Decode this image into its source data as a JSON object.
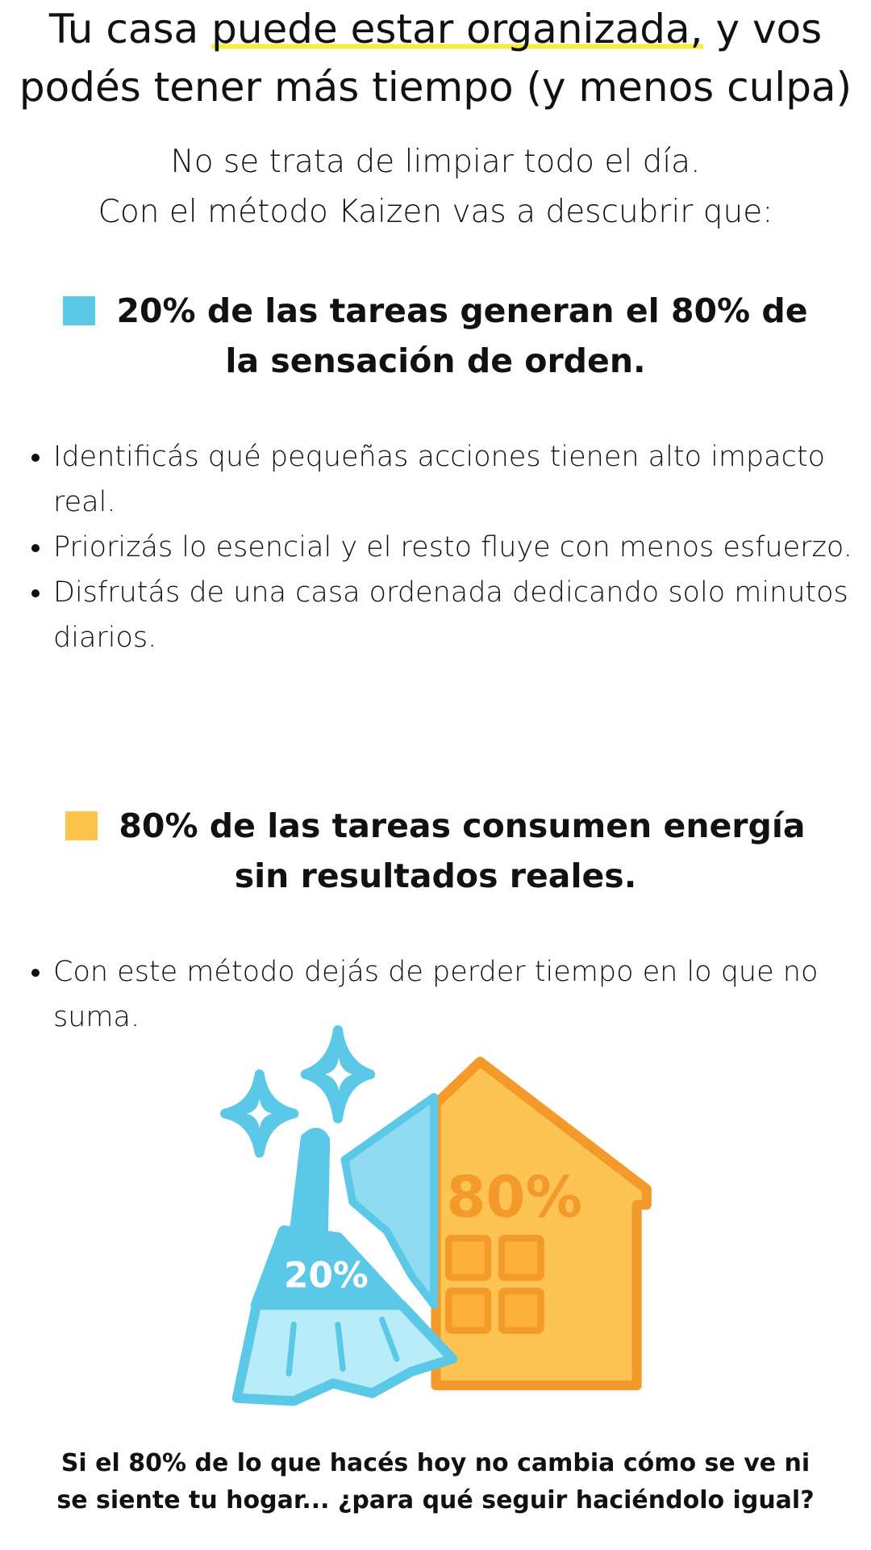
{
  "header": {
    "title_start": "Tu casa ",
    "title_highlight": "puede estar organizada,",
    "title_end": " y vos podés tener más tiempo (y menos culpa)",
    "intro": [
      "No se trata de limpiar todo el día.",
      "Con el método Kaizen vas a descubrir que:"
    ]
  },
  "sections": [
    {
      "heading": "20% de las tareas generan el 80% de la sensación de orden.",
      "marker_color": "#5bc8e8",
      "bullets": [
        "Identificás qué pequeñas acciones tienen alto impacto real.",
        "Priorizás lo esencial y el resto fluye con menos esfuerzo.",
        "Disfrutás de una casa ordenada dedicando solo minutos diarios."
      ]
    },
    {
      "heading": "80% de las tareas consumen energía sin resultados reales.",
      "marker_color": "#fcc44a",
      "bullets": [
        "Con este método dejás de perder tiempo en lo que no suma."
      ]
    }
  ],
  "illustration": {
    "broom_label": "20%",
    "house_label": "80%"
  },
  "footer": "Si el 80% de lo que hacés hoy no cambia cómo se ve ni se siente tu hogar... ¿para qué seguir haciéndolo igual?"
}
